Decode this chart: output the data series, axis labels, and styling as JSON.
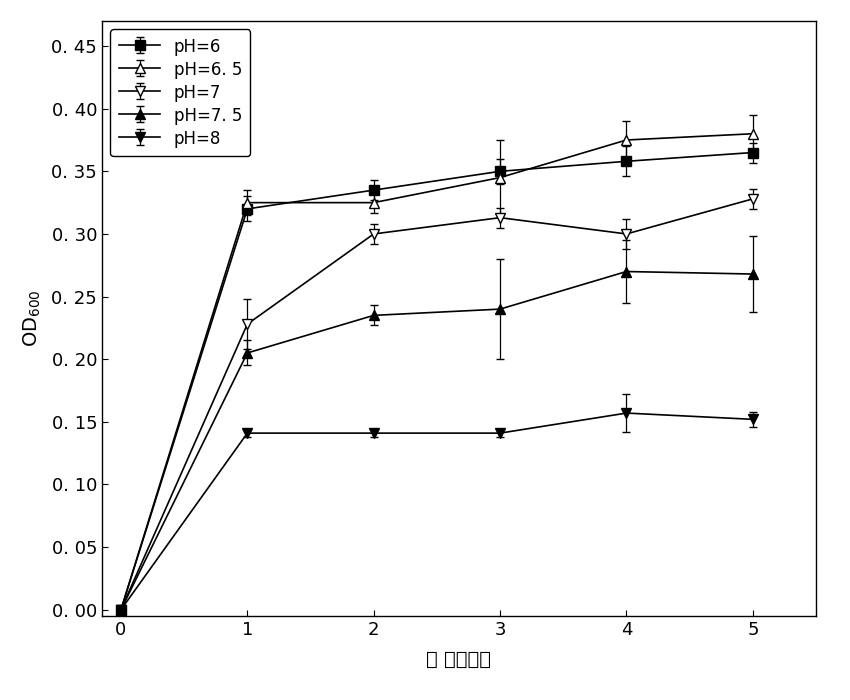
{
  "x": [
    0,
    1,
    2,
    3,
    4,
    5
  ],
  "series": {
    "pH6": {
      "y": [
        0.0,
        0.32,
        0.335,
        0.35,
        0.358,
        0.365
      ],
      "yerr": [
        0.0,
        0.01,
        0.008,
        0.01,
        0.012,
        0.008
      ],
      "marker": "s",
      "fillstyle": "full",
      "label": "pH=6"
    },
    "pH6.5": {
      "y": [
        0.0,
        0.325,
        0.325,
        0.345,
        0.375,
        0.38
      ],
      "yerr": [
        0.0,
        0.01,
        0.008,
        0.03,
        0.015,
        0.015
      ],
      "marker": "^",
      "fillstyle": "none",
      "label": "pH=6. 5"
    },
    "pH7": {
      "y": [
        0.0,
        0.228,
        0.3,
        0.313,
        0.3,
        0.328
      ],
      "yerr": [
        0.0,
        0.02,
        0.008,
        0.008,
        0.012,
        0.008
      ],
      "marker": "v",
      "fillstyle": "none",
      "label": "pH=7"
    },
    "pH7.5": {
      "y": [
        0.0,
        0.205,
        0.235,
        0.24,
        0.27,
        0.268
      ],
      "yerr": [
        0.0,
        0.01,
        0.008,
        0.04,
        0.025,
        0.03
      ],
      "marker": "^",
      "fillstyle": "full",
      "label": "pH=7. 5"
    },
    "pH8": {
      "y": [
        0.0,
        0.141,
        0.141,
        0.141,
        0.157,
        0.152
      ],
      "yerr": [
        0.0,
        0.003,
        0.003,
        0.003,
        0.015,
        0.006
      ],
      "marker": "v",
      "fillstyle": "full",
      "label": "pH=8"
    }
  },
  "xlabel": "时 间（天）",
  "ylabel": "OD$_{600}$",
  "xlim": [
    -0.15,
    5.5
  ],
  "ylim": [
    -0.005,
    0.47
  ],
  "xticks": [
    0,
    1,
    2,
    3,
    4,
    5
  ],
  "yticks": [
    0.0,
    0.05,
    0.1,
    0.15,
    0.2,
    0.25,
    0.3,
    0.35,
    0.4,
    0.45
  ],
  "ytick_labels": [
    "0. 00",
    "0. 05",
    "0. 10",
    "0. 15",
    "0. 20",
    "0. 25",
    "0. 30",
    "0. 35",
    "0. 40",
    "0. 45"
  ],
  "line_color": "black",
  "marker_size": 7,
  "line_width": 1.2,
  "capsize": 3,
  "legend_loc": "upper left",
  "legend_fontsize": 12,
  "axis_fontsize": 14,
  "tick_fontsize": 13
}
